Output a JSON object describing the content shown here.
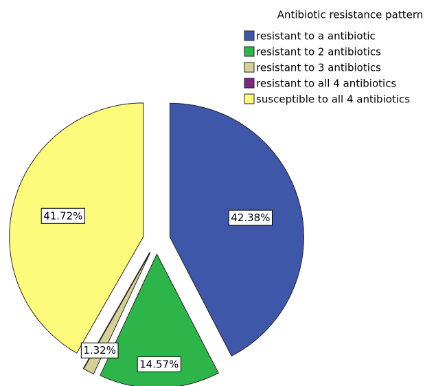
{
  "chart_data": {
    "type": "pie",
    "legend_title": "Antibiotic resistance pattern",
    "categories": [
      "resistant to a antibiotic",
      "resistant to 2 antibiotics",
      "resistant to 3 antibiotics",
      "resistant to all 4 antibiotics",
      "susceptible to all 4 antibiotics"
    ],
    "values": [
      42.38,
      14.57,
      1.32,
      0,
      41.72
    ],
    "value_labels": [
      "42.38%",
      "14.57%",
      "1.32%",
      null,
      "41.72%"
    ],
    "colors": [
      "#3f57a8",
      "#2db54a",
      "#d5cf98",
      "#7b2a82",
      "#fdfa7c"
    ],
    "legend": "top-right"
  }
}
